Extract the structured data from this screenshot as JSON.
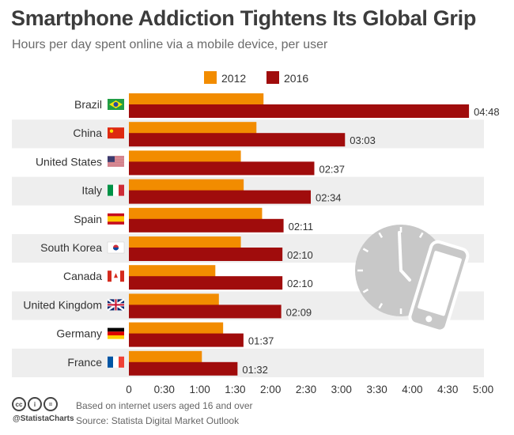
{
  "header": {
    "title": "Smartphone Addiction Tightens Its Global Grip",
    "subtitle": "Hours per day spent online via a mobile device, per user"
  },
  "footer": {
    "note": "Based on internet users aged 16 and over",
    "source": "Source: Statista Digital Market Outlook",
    "brand": "@StatistaCharts",
    "license_icons": [
      "cc",
      "i",
      "="
    ]
  },
  "colors": {
    "s2012": "#f28c00",
    "s2016": "#a00c0c",
    "band": "#eeeeee",
    "clock": "#c8c8c8"
  },
  "chart_data": {
    "type": "bar",
    "orientation": "horizontal",
    "title": "Smartphone Addiction Tightens Its Global Grip",
    "subtitle": "Hours per day spent online via a mobile device, per user",
    "categories": [
      "Brazil",
      "China",
      "United States",
      "Italy",
      "Spain",
      "South Korea",
      "Canada",
      "United Kingdom",
      "Germany",
      "France"
    ],
    "series": [
      {
        "name": "2012",
        "values": [
          1.9,
          1.8,
          1.58,
          1.62,
          1.88,
          1.58,
          1.22,
          1.27,
          1.33,
          1.03
        ]
      },
      {
        "name": "2016",
        "values": [
          4.8,
          3.05,
          2.617,
          2.567,
          2.183,
          2.167,
          2.167,
          2.15,
          1.617,
          1.533
        ],
        "labels": [
          "04:48",
          "03:03",
          "02:37",
          "02:34",
          "02:11",
          "02:10",
          "02:10",
          "02:09",
          "01:37",
          "01:32"
        ]
      }
    ],
    "xlim": [
      0,
      5
    ],
    "xticks": [
      0,
      0.5,
      1,
      1.5,
      2,
      2.5,
      3,
      3.5,
      4,
      4.5,
      5
    ],
    "xtick_labels": [
      "0",
      "0:30",
      "1:00",
      "1:30",
      "2:00",
      "2:30",
      "3:00",
      "3:30",
      "4:00",
      "4:30",
      "5:00"
    ],
    "legend": [
      "2012",
      "2016"
    ],
    "legend_position": "top-center",
    "flags": [
      "brazil-flag-icon",
      "china-flag-icon",
      "usa-flag-icon",
      "italy-flag-icon",
      "spain-flag-icon",
      "south-korea-flag-icon",
      "canada-flag-icon",
      "uk-flag-icon",
      "germany-flag-icon",
      "france-flag-icon"
    ]
  }
}
